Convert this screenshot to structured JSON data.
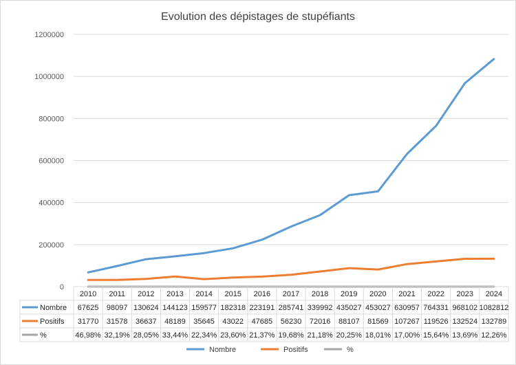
{
  "chart_data": {
    "type": "line",
    "title": "Evolution des dépistages de stupéfiants",
    "categories": [
      "2010",
      "2011",
      "2012",
      "2013",
      "2014",
      "2015",
      "2016",
      "2017",
      "2018",
      "2019",
      "2020",
      "2021",
      "2022",
      "2023",
      "2024"
    ],
    "ylim": [
      0,
      1200000
    ],
    "y_ticks": [
      0,
      200000,
      400000,
      600000,
      800000,
      1000000,
      1200000
    ],
    "y_tick_labels": [
      "0",
      "200000",
      "400000",
      "600000",
      "800000",
      "1000000",
      "1200000"
    ],
    "grid": true,
    "legend_position": "bottom",
    "data_table": true,
    "series": [
      {
        "name": "Nombre",
        "color": "#5b9bd5",
        "values": [
          67625,
          98097,
          130624,
          144123,
          159577,
          182318,
          223191,
          285741,
          339992,
          435027,
          453027,
          630957,
          764331,
          968102,
          1082812
        ],
        "labels": [
          "67625",
          "98097",
          "130624",
          "144123",
          "159577",
          "182318",
          "223191",
          "285741",
          "339992",
          "435027",
          "453027",
          "630957",
          "764331",
          "968102",
          "1082812"
        ]
      },
      {
        "name": "Positifs",
        "color": "#ed7d31",
        "values": [
          31770,
          31578,
          36637,
          48189,
          35645,
          43022,
          47685,
          56230,
          72016,
          88107,
          81569,
          107267,
          119526,
          132524,
          132789
        ],
        "labels": [
          "31770",
          "31578",
          "36637",
          "48189",
          "35645",
          "43022",
          "47685",
          "56230",
          "72016",
          "88107",
          "81569",
          "107267",
          "119526",
          "132524",
          "132789"
        ]
      },
      {
        "name": "%",
        "color": "#a5a5a5",
        "values": [
          0.4698,
          0.3219,
          0.2805,
          0.3344,
          0.2234,
          0.236,
          0.2137,
          0.1968,
          0.2118,
          0.2025,
          0.1801,
          0.17,
          0.1564,
          0.1369,
          0.1226
        ],
        "labels": [
          "46,98%",
          "32,19%",
          "28,05%",
          "33,44%",
          "22,34%",
          "23,60%",
          "21,37%",
          "19,68%",
          "21,18%",
          "20,25%",
          "18,01%",
          "17,00%",
          "15,64%",
          "13,69%",
          "12,26%"
        ]
      }
    ]
  }
}
